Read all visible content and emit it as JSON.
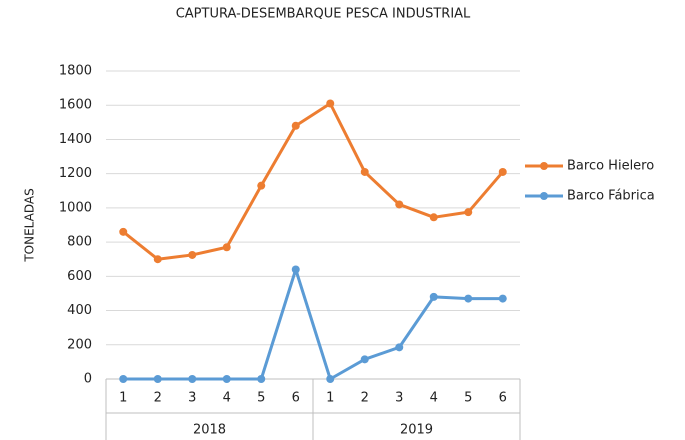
{
  "chart_data": {
    "type": "line",
    "title": "CAPTURA-DESEMBARQUE   PESCA INDUSTRIAL",
    "y_label": "TONELADAS",
    "categories": [
      "1",
      "2",
      "3",
      "4",
      "5",
      "6",
      "1",
      "2",
      "3",
      "4",
      "5",
      "6"
    ],
    "groups": [
      "2018",
      "2019"
    ],
    "series": [
      {
        "name": "Barco Hielero",
        "color": "#ed7d31",
        "values": [
          860,
          700,
          725,
          770,
          1130,
          1480,
          1610,
          1210,
          1020,
          945,
          975,
          1210
        ]
      },
      {
        "name": "Barco Fábrica",
        "color": "#5b9bd5",
        "values": [
          0,
          0,
          0,
          0,
          0,
          640,
          0,
          115,
          185,
          480,
          470,
          470
        ]
      }
    ],
    "ylim": [
      0,
      1800
    ],
    "yticks": [
      0,
      200,
      400,
      600,
      800,
      1000,
      1200,
      1400,
      1600,
      1800
    ],
    "grid": true,
    "legend": "right"
  }
}
